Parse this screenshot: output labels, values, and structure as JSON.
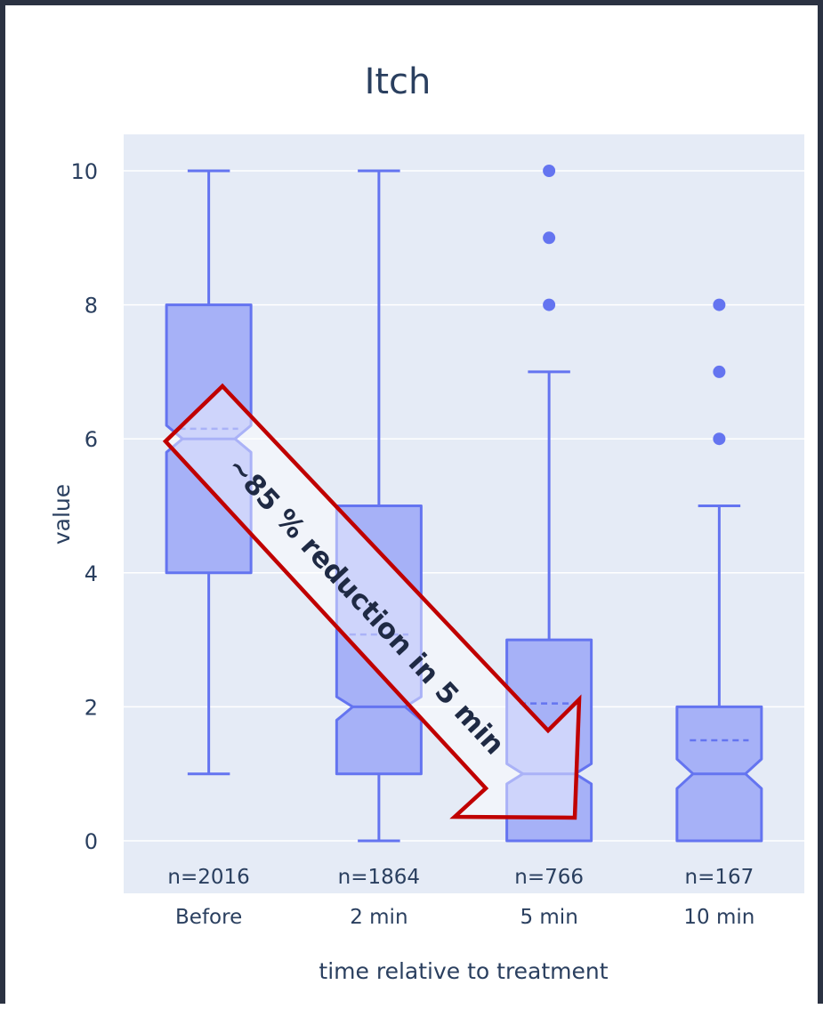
{
  "chart_data": {
    "type": "box",
    "title": "Itch",
    "xlabel": "time relative to treatment",
    "ylabel": "value",
    "ylim": [
      -0.8,
      10.6
    ],
    "yticks": [
      0,
      2,
      4,
      6,
      8,
      10
    ],
    "categories": [
      "Before",
      "2 min",
      "5 min",
      "10 min"
    ],
    "counts": [
      "n=2016",
      "n=1864",
      "n=766",
      "n=167"
    ],
    "notched": true,
    "grid": true,
    "boxes": [
      {
        "category": "Before",
        "whisker_low": 1,
        "q1": 4,
        "median": 6,
        "q3": 8,
        "whisker_high": 10,
        "mean": 6.15,
        "notch_low": 5.8,
        "notch_high": 6.2,
        "outliers": []
      },
      {
        "category": "2 min",
        "whisker_low": 0,
        "q1": 1,
        "median": 2,
        "q3": 5,
        "whisker_high": 10,
        "mean": 3.08,
        "notch_low": 1.8,
        "notch_high": 2.15,
        "outliers": []
      },
      {
        "category": "5 min",
        "whisker_low": 0,
        "q1": 0,
        "median": 1,
        "q3": 3,
        "whisker_high": 7,
        "mean": 2.05,
        "notch_low": 0.85,
        "notch_high": 1.15,
        "outliers": [
          8,
          9,
          10
        ]
      },
      {
        "category": "10 min",
        "whisker_low": 0,
        "q1": 0,
        "median": 1,
        "q3": 2,
        "whisker_high": 5,
        "mean": 1.5,
        "notch_low": 0.78,
        "notch_high": 1.22,
        "outliers": [
          6,
          7,
          8
        ]
      }
    ],
    "annotation": {
      "text": "~85 % reduction in 5 min",
      "from": {
        "category": "Before",
        "value": 6
      },
      "to": {
        "category": "5 min",
        "value": 0.4
      }
    },
    "colors": {
      "box_fill": "#a6b1f7",
      "box_stroke": "#6474f0",
      "plot_bg": "#e5ebf6",
      "grid": "#ffffff",
      "text": "#2a3f5f",
      "annotation_border": "#c00000",
      "annotation_text": "#1f2a44"
    }
  }
}
